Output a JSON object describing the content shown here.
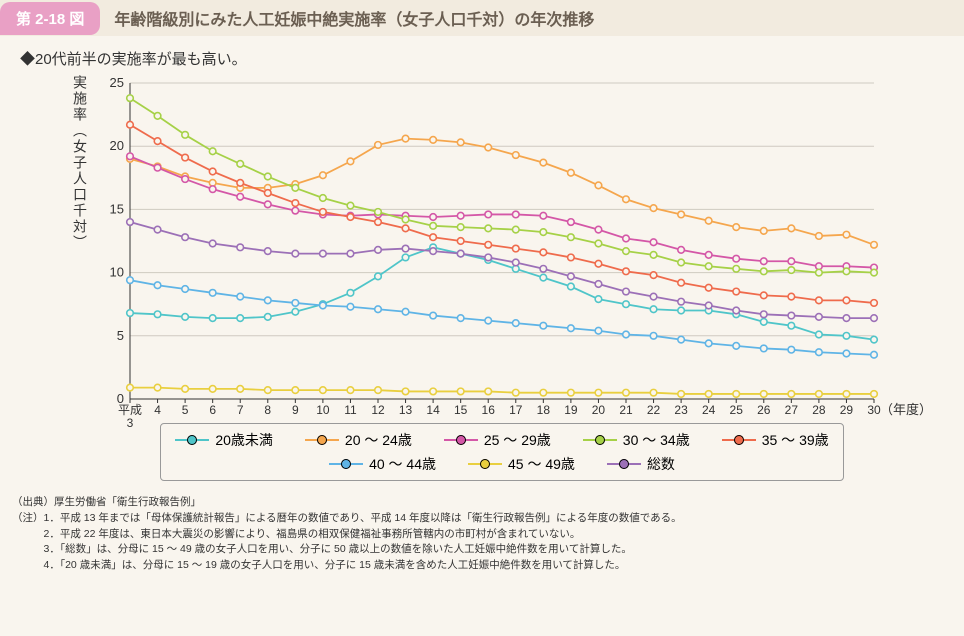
{
  "badge": "第 2-18 図",
  "title": "年齢階級別にみた人工妊娠中絶実施率（女子人口千対）の年次推移",
  "summary": "◆20代前半の実施率が最も高い。",
  "y_axis_label": "実施率（女子人口千対）",
  "x_axis_units": "（年度）",
  "x_first_prefix": "平成",
  "ylim": [
    0,
    25
  ],
  "yticks": [
    0,
    5,
    10,
    15,
    20,
    25
  ],
  "x_categories": [
    "3",
    "4",
    "5",
    "6",
    "7",
    "8",
    "9",
    "10",
    "11",
    "12",
    "13",
    "14",
    "15",
    "16",
    "17",
    "18",
    "19",
    "20",
    "21",
    "22",
    "23",
    "24",
    "25",
    "26",
    "27",
    "28",
    "29",
    "30"
  ],
  "grid_color": "#cfcac1",
  "axis_color": "#333333",
  "background_color": "#f9f5ee",
  "marker_radius": 3.3,
  "line_width": 1.8,
  "series": [
    {
      "key": "u20",
      "label": "20歳未満",
      "color": "#4fc5c9",
      "values": [
        6.8,
        6.7,
        6.5,
        6.4,
        6.4,
        6.5,
        6.9,
        7.5,
        8.4,
        9.7,
        11.2,
        12.0,
        11.5,
        11.0,
        10.3,
        9.6,
        8.9,
        7.9,
        7.5,
        7.1,
        7.0,
        7.0,
        6.7,
        6.1,
        5.8,
        5.1,
        5.0,
        4.7
      ]
    },
    {
      "key": "s2024",
      "label": "20 ～ 24歳",
      "color": "#f5a64d",
      "values": [
        19.0,
        18.4,
        17.6,
        17.1,
        16.7,
        16.7,
        17.0,
        17.7,
        18.8,
        20.1,
        20.6,
        20.5,
        20.3,
        19.9,
        19.3,
        18.7,
        17.9,
        16.9,
        15.8,
        15.1,
        14.6,
        14.1,
        13.6,
        13.3,
        13.5,
        12.9,
        13.0,
        12.2
      ]
    },
    {
      "key": "s2529",
      "label": "25 ～ 29歳",
      "color": "#d457a7",
      "values": [
        19.2,
        18.3,
        17.4,
        16.6,
        16.0,
        15.4,
        14.9,
        14.6,
        14.5,
        14.6,
        14.5,
        14.4,
        14.5,
        14.6,
        14.6,
        14.5,
        14.0,
        13.4,
        12.7,
        12.4,
        11.8,
        11.4,
        11.1,
        10.9,
        10.9,
        10.5,
        10.5,
        10.4
      ]
    },
    {
      "key": "s3034",
      "label": "30 ～ 34歳",
      "color": "#a6d147",
      "values": [
        23.8,
        22.4,
        20.9,
        19.6,
        18.6,
        17.6,
        16.7,
        15.9,
        15.3,
        14.8,
        14.2,
        13.7,
        13.6,
        13.5,
        13.4,
        13.2,
        12.8,
        12.3,
        11.7,
        11.4,
        10.8,
        10.5,
        10.3,
        10.1,
        10.2,
        10.0,
        10.1,
        10.0
      ]
    },
    {
      "key": "s3539",
      "label": "35 ～ 39歳",
      "color": "#ef6b4c",
      "values": [
        21.7,
        20.4,
        19.1,
        18.0,
        17.1,
        16.3,
        15.5,
        14.8,
        14.4,
        14.0,
        13.5,
        12.8,
        12.5,
        12.2,
        11.9,
        11.6,
        11.2,
        10.7,
        10.1,
        9.8,
        9.2,
        8.8,
        8.5,
        8.2,
        8.1,
        7.8,
        7.8,
        7.6
      ]
    },
    {
      "key": "s4044",
      "label": "40 ～ 44歳",
      "color": "#5fb4e6",
      "values": [
        9.4,
        9.0,
        8.7,
        8.4,
        8.1,
        7.8,
        7.6,
        7.4,
        7.3,
        7.1,
        6.9,
        6.6,
        6.4,
        6.2,
        6.0,
        5.8,
        5.6,
        5.4,
        5.1,
        5.0,
        4.7,
        4.4,
        4.2,
        4.0,
        3.9,
        3.7,
        3.6,
        3.5
      ]
    },
    {
      "key": "s4549",
      "label": "45 ～ 49歳",
      "color": "#e9cf3f",
      "values": [
        0.9,
        0.9,
        0.8,
        0.8,
        0.8,
        0.7,
        0.7,
        0.7,
        0.7,
        0.7,
        0.6,
        0.6,
        0.6,
        0.6,
        0.5,
        0.5,
        0.5,
        0.5,
        0.5,
        0.5,
        0.4,
        0.4,
        0.4,
        0.4,
        0.4,
        0.4,
        0.4,
        0.4
      ]
    },
    {
      "key": "total",
      "label": "総数",
      "color": "#9c70b7",
      "values": [
        14.0,
        13.4,
        12.8,
        12.3,
        12.0,
        11.7,
        11.5,
        11.5,
        11.5,
        11.8,
        11.9,
        11.7,
        11.5,
        11.2,
        10.8,
        10.3,
        9.7,
        9.1,
        8.5,
        8.1,
        7.7,
        7.4,
        7.0,
        6.7,
        6.6,
        6.5,
        6.4,
        6.4
      ]
    }
  ],
  "legend_order": [
    "u20",
    "s2024",
    "s2529",
    "s3034",
    "s3539",
    "s4044",
    "s4549",
    "total"
  ],
  "source_label": "（出典）厚生労働省「衛生行政報告例」",
  "note_label": "（注）",
  "notes": [
    "平成 13 年までは「母体保護統計報告」による暦年の数値であり、平成 14 年度以降は「衛生行政報告例」による年度の数値である。",
    "平成 22 年度は、東日本大震災の影響により、福島県の相双保健福祉事務所管轄内の市町村が含まれていない。",
    "「総数」は、分母に 15 ～ 49 歳の女子人口を用い、分子に 50 歳以上の数値を除いた人工妊娠中絶件数を用いて計算した。",
    "「20 歳未満」は、分母に 15 ～ 19 歳の女子人口を用い、分子に 15 歳未満を含めた人工妊娠中絶件数を用いて計算した。"
  ]
}
